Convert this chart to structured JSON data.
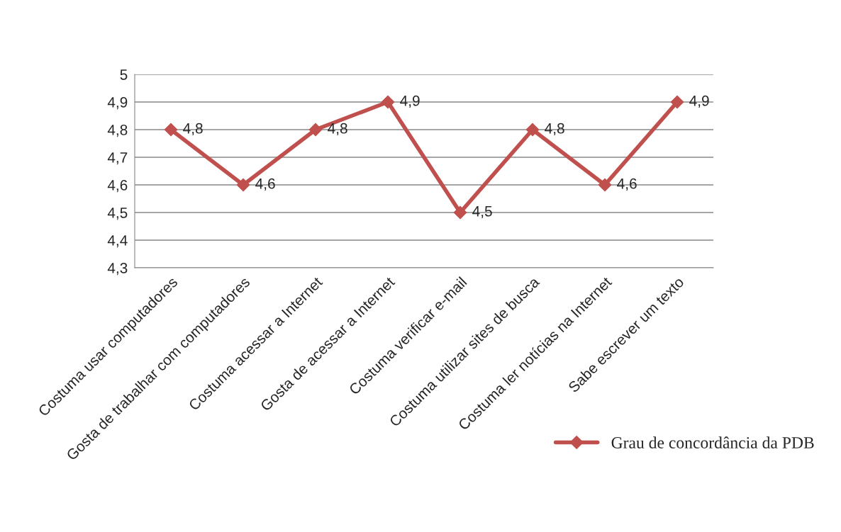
{
  "chart_data": {
    "type": "line",
    "categories": [
      "Costuma usar computadores",
      "Gosta de trabalhar com computadores",
      "Costuma acessar a Internet",
      "Gosta de acessar a Internet",
      "Costuma verificar e-mail",
      "Costuma utilizar sites de busca",
      "Costuma ler notícias na Internet",
      "Sabe escrever um texto"
    ],
    "series": [
      {
        "name": "Grau de concordância da PDB",
        "color": "#c0504d",
        "values": [
          4.8,
          4.6,
          4.8,
          4.9,
          4.5,
          4.8,
          4.6,
          4.9
        ],
        "value_labels": [
          "4,8",
          "4,6",
          "4,8",
          "4,9",
          "4,5",
          "4,8",
          "4,6",
          "4,9"
        ]
      }
    ],
    "ylim": [
      4.3,
      5
    ],
    "yticks": [
      {
        "value": 4.3,
        "label": "4,3"
      },
      {
        "value": 4.4,
        "label": "4,4"
      },
      {
        "value": 4.5,
        "label": "4,5"
      },
      {
        "value": 4.6,
        "label": "4,6"
      },
      {
        "value": 4.7,
        "label": "4,7"
      },
      {
        "value": 4.8,
        "label": "4,8"
      },
      {
        "value": 4.9,
        "label": "4,9"
      },
      {
        "value": 5,
        "label": "5"
      }
    ],
    "grid": "y",
    "marker": "diamond",
    "line_style": "solid",
    "legend": "bottom right"
  }
}
